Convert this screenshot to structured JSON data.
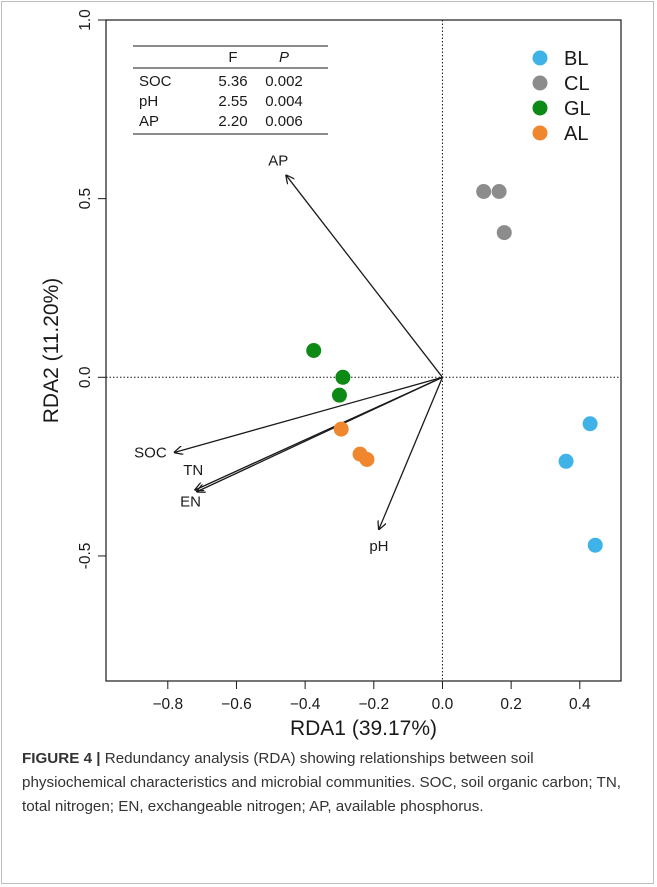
{
  "chart_data": {
    "type": "scatter",
    "xlabel": "RDA1 (39.17%)",
    "ylabel": "RDA2 (11.20%)",
    "xlim": [
      -0.98,
      0.52
    ],
    "ylim": [
      -0.85,
      1.0
    ],
    "xticks": [
      -0.8,
      -0.6,
      -0.4,
      -0.2,
      0.0,
      0.2,
      0.4
    ],
    "xtick_labels": [
      "−0.8",
      "−0.6",
      "−0.4",
      "−0.2",
      "0.0",
      "0.2",
      "0.4"
    ],
    "yticks": [
      -0.5,
      0.0,
      0.5,
      1.0
    ],
    "ytick_labels": [
      "-0.5",
      "0.0",
      "0.5",
      "1.0"
    ],
    "reference_lines": {
      "x": 0,
      "y": 0,
      "style": "dotted"
    },
    "legend_position": "top-right",
    "series": [
      {
        "name": "BL",
        "color": "#3fb3e8",
        "points": [
          [
            0.43,
            -0.13
          ],
          [
            0.36,
            -0.235
          ],
          [
            0.445,
            -0.47
          ]
        ]
      },
      {
        "name": "CL",
        "color": "#8c8c8c",
        "points": [
          [
            0.12,
            0.52
          ],
          [
            0.165,
            0.52
          ],
          [
            0.18,
            0.405
          ]
        ]
      },
      {
        "name": "GL",
        "color": "#0d8a16",
        "points": [
          [
            -0.375,
            0.075
          ],
          [
            -0.29,
            0.0
          ],
          [
            -0.3,
            -0.05
          ]
        ]
      },
      {
        "name": "AL",
        "color": "#f0862e",
        "points": [
          [
            -0.295,
            -0.145
          ],
          [
            -0.24,
            -0.215
          ],
          [
            -0.22,
            -0.23
          ]
        ]
      }
    ],
    "vectors": [
      {
        "name": "AP",
        "x": -0.455,
        "y": 0.565,
        "label": "AP"
      },
      {
        "name": "SOC",
        "x": -0.78,
        "y": -0.21,
        "label": "SOC"
      },
      {
        "name": "TN",
        "x": -0.72,
        "y": -0.315,
        "label": "TN"
      },
      {
        "name": "EN",
        "x": -0.715,
        "y": -0.32,
        "label": "EN"
      },
      {
        "name": "pH",
        "x": -0.185,
        "y": -0.425,
        "label": "pH"
      }
    ],
    "stats_table": {
      "headers": [
        "",
        "F",
        "P"
      ],
      "rows": [
        [
          "SOC",
          "5.36",
          "0.002"
        ],
        [
          "pH",
          "2.55",
          "0.004"
        ],
        [
          "AP",
          "2.20",
          "0.006"
        ]
      ]
    }
  },
  "caption": {
    "label": "FIGURE 4 |",
    "text": " Redundancy analysis (RDA) showing relationships between soil physiochemical characteristics and microbial communities. SOC, soil organic carbon; TN, total nitrogen; EN, exchangeable nitrogen; AP, available phosphorus."
  }
}
